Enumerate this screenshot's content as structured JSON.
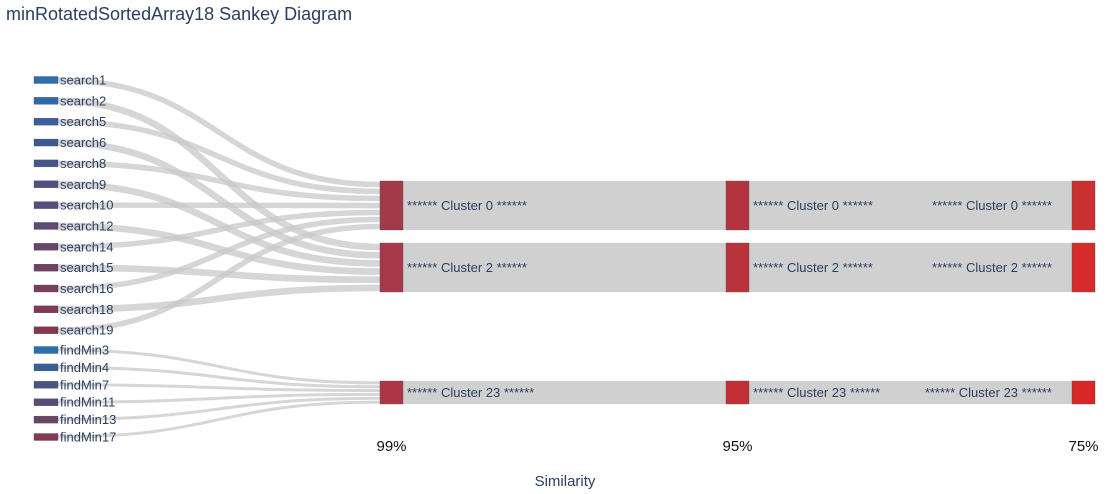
{
  "chart_data": {
    "type": "sankey",
    "title": "minRotatedSortedArray18 Sankey Diagram",
    "xlabel": "Similarity",
    "levels": [
      "99%",
      "95%",
      "75%"
    ],
    "sources": [
      {
        "name": "search1",
        "color": "#2c6fb0"
      },
      {
        "name": "search2",
        "color": "#2f6aa8"
      },
      {
        "name": "search5",
        "color": "#37609c"
      },
      {
        "name": "search6",
        "color": "#3d5b92"
      },
      {
        "name": "search8",
        "color": "#45568a"
      },
      {
        "name": "search9",
        "color": "#4d5283"
      },
      {
        "name": "search10",
        "color": "#564e7c"
      },
      {
        "name": "search12",
        "color": "#5e4a74"
      },
      {
        "name": "search14",
        "color": "#66466d"
      },
      {
        "name": "search15",
        "color": "#6e4265"
      },
      {
        "name": "search16",
        "color": "#773e5e"
      },
      {
        "name": "search18",
        "color": "#803a56"
      },
      {
        "name": "search19",
        "color": "#8a354e"
      },
      {
        "name": "findMin3",
        "color": "#2c6fb0"
      },
      {
        "name": "findMin4",
        "color": "#3a5f98"
      },
      {
        "name": "findMin7",
        "color": "#4a5586"
      },
      {
        "name": "findMin11",
        "color": "#5a4c78"
      },
      {
        "name": "findMin13",
        "color": "#6c4468"
      },
      {
        "name": "findMin17",
        "color": "#843a54"
      }
    ],
    "clusters": [
      {
        "name": "****** Cluster 0 ******",
        "members": [
          "search1",
          "search5",
          "search8",
          "search10",
          "search14",
          "search16",
          "search19"
        ],
        "colors": [
          "#a23a4a",
          "#b3343f",
          "#c9302f"
        ]
      },
      {
        "name": "****** Cluster 2 ******",
        "members": [
          "search2",
          "search6",
          "search9",
          "search12",
          "search15",
          "search18"
        ],
        "colors": [
          "#a8384a",
          "#ba323c",
          "#d52b2b"
        ]
      },
      {
        "name": "****** Cluster 23 ******",
        "members": [
          "findMin3",
          "findMin4",
          "findMin7",
          "findMin11",
          "findMin13",
          "findMin17"
        ],
        "colors": [
          "#ad3644",
          "#c22f35",
          "#d92626"
        ]
      }
    ],
    "link_color": "#c8c8c8"
  }
}
